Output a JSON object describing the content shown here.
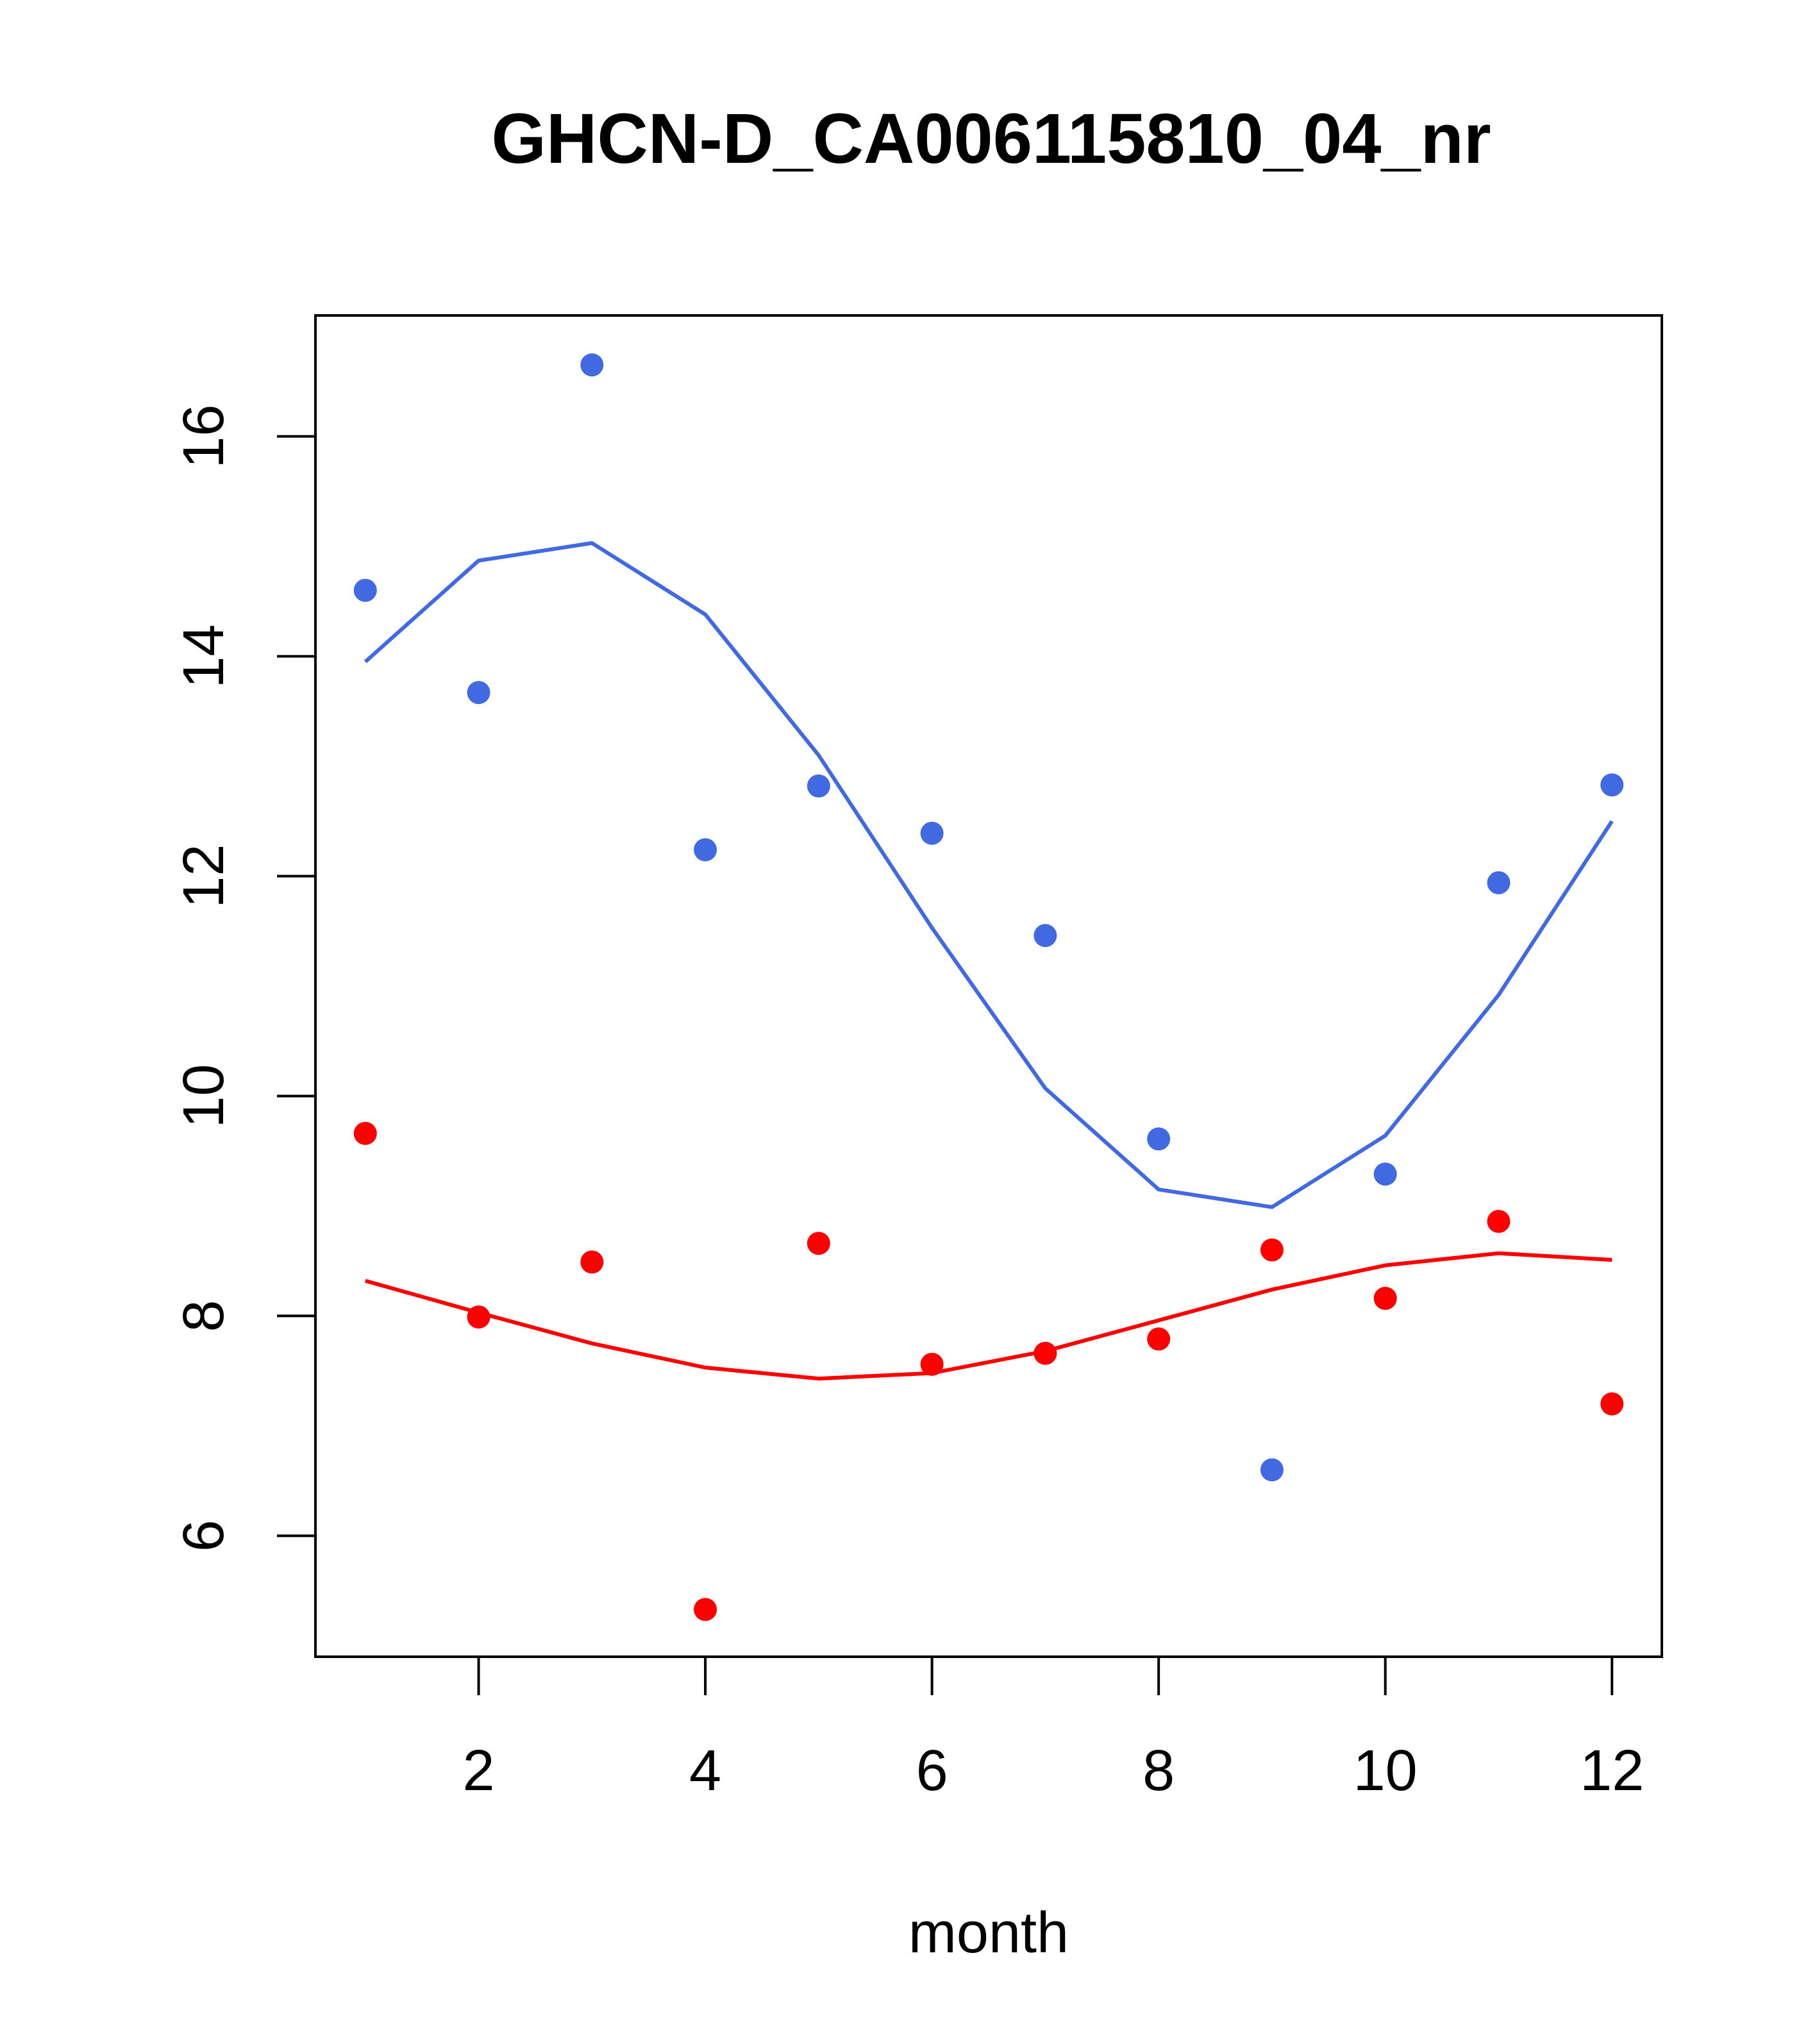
{
  "chart_data": {
    "type": "scatter",
    "title": "GHCN-D_CA006115810_04_nr",
    "xlabel": "month",
    "ylabel": "",
    "xlim": [
      0.56,
      12.44
    ],
    "ylim": [
      4.9,
      17.1
    ],
    "xticks": [
      2,
      4,
      6,
      8,
      10,
      12
    ],
    "yticks": [
      6,
      8,
      10,
      12,
      14,
      16
    ],
    "grid": false,
    "legend": "none",
    "series": [
      {
        "color": "#4169e1",
        "x": [
          1,
          2,
          3,
          4,
          5,
          6,
          7,
          8,
          9,
          10,
          11,
          12
        ],
        "points": [
          14.6,
          13.67,
          16.65,
          12.24,
          12.82,
          12.39,
          11.46,
          9.61,
          6.6,
          9.29,
          11.94,
          12.83
        ],
        "fit": [
          13.95,
          14.87,
          15.03,
          14.38,
          13.1,
          11.53,
          10.07,
          9.15,
          8.99,
          9.64,
          10.92,
          12.5
        ]
      },
      {
        "color": "#ff0000",
        "x": [
          1,
          2,
          3,
          4,
          5,
          6,
          7,
          8,
          9,
          10,
          11,
          12
        ],
        "points": [
          9.66,
          7.99,
          8.49,
          5.33,
          8.66,
          7.56,
          7.66,
          7.79,
          8.6,
          8.16,
          8.86,
          7.2
        ],
        "fit": [
          8.32,
          8.03,
          7.75,
          7.53,
          7.43,
          7.48,
          7.68,
          7.96,
          8.24,
          8.46,
          8.57,
          8.51
        ]
      }
    ]
  }
}
